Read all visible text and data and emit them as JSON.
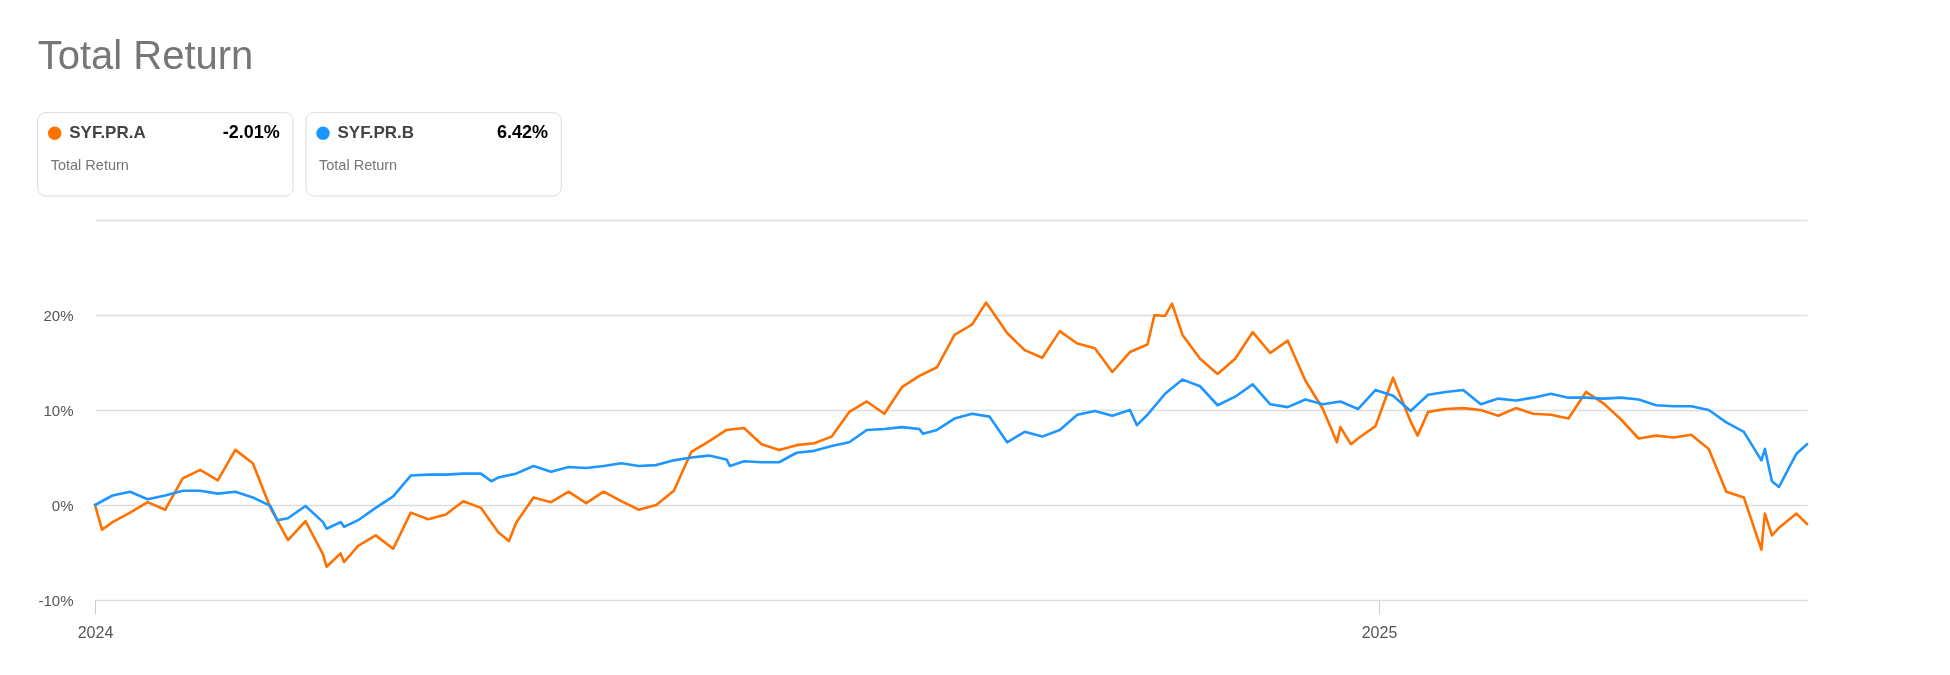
{
  "chart_data": {
    "type": "line",
    "title": "Total Return",
    "xlim": [
      "2024-01-01",
      "2025-05-03"
    ],
    "xticks": [
      {
        "value": "2024-01-01",
        "label": "2024"
      },
      {
        "value": "2025-01-01",
        "label": "2025"
      }
    ],
    "ylim": [
      -10,
      30
    ],
    "yticks": [
      {
        "value": -10,
        "label": "-10%"
      },
      {
        "value": 0,
        "label": "0%"
      },
      {
        "value": 10,
        "label": "10%"
      },
      {
        "value": 20,
        "label": "20%"
      },
      {
        "value": 30,
        "label": null
      }
    ],
    "grid": "y",
    "legend": "top left",
    "annotations": [
      "-2.01%",
      "Total Return",
      "6.42%",
      "Total Return"
    ],
    "series": [
      {
        "name": "SYF.PR.A",
        "color": "#ff7100",
        "x": [
          "2024-01-01",
          "2024-01-03",
          "2024-01-06",
          "2024-01-11",
          "2024-01-16",
          "2024-01-21",
          "2024-01-26",
          "2024-01-31",
          "2024-02-05",
          "2024-02-10",
          "2024-02-15",
          "2024-02-20",
          "2024-02-25",
          "2024-03-01",
          "2024-03-06",
          "2024-03-07",
          "2024-03-11",
          "2024-03-12",
          "2024-03-16",
          "2024-03-21",
          "2024-03-26",
          "2024-03-31",
          "2024-04-05",
          "2024-04-10",
          "2024-04-15",
          "2024-04-20",
          "2024-04-25",
          "2024-04-28",
          "2024-04-30",
          "2024-05-05",
          "2024-05-10",
          "2024-05-15",
          "2024-05-20",
          "2024-05-25",
          "2024-05-30",
          "2024-06-04",
          "2024-06-09",
          "2024-06-14",
          "2024-06-19",
          "2024-06-24",
          "2024-06-29",
          "2024-07-04",
          "2024-07-09",
          "2024-07-14",
          "2024-07-19",
          "2024-07-24",
          "2024-07-29",
          "2024-08-03",
          "2024-08-08",
          "2024-08-13",
          "2024-08-18",
          "2024-08-23",
          "2024-08-28",
          "2024-09-02",
          "2024-09-07",
          "2024-09-11",
          "2024-09-12",
          "2024-09-17",
          "2024-09-22",
          "2024-09-27",
          "2024-10-02",
          "2024-10-07",
          "2024-10-12",
          "2024-10-17",
          "2024-10-22",
          "2024-10-27",
          "2024-10-29",
          "2024-11-01",
          "2024-11-03",
          "2024-11-06",
          "2024-11-11",
          "2024-11-16",
          "2024-11-21",
          "2024-11-26",
          "2024-12-01",
          "2024-12-06",
          "2024-12-11",
          "2024-12-16",
          "2024-12-20",
          "2024-12-21",
          "2024-12-24",
          "2024-12-26",
          "2024-12-31",
          "2025-01-05",
          "2025-01-10",
          "2025-01-12",
          "2025-01-15",
          "2025-01-20",
          "2025-01-25",
          "2025-01-30",
          "2025-02-04",
          "2025-02-09",
          "2025-02-14",
          "2025-02-19",
          "2025-02-24",
          "2025-03-01",
          "2025-03-06",
          "2025-03-11",
          "2025-03-16",
          "2025-03-21",
          "2025-03-26",
          "2025-03-31",
          "2025-04-05",
          "2025-04-10",
          "2025-04-15",
          "2025-04-20",
          "2025-04-21",
          "2025-04-23",
          "2025-04-25",
          "2025-04-30",
          "2025-05-03"
        ],
        "values": [
          0.0,
          -2.6,
          -1.8,
          -0.8,
          0.3,
          -0.5,
          2.8,
          3.7,
          2.6,
          5.8,
          4.4,
          -0.3,
          -3.7,
          -1.7,
          -5.2,
          -6.5,
          -5.1,
          -6.0,
          -4.3,
          -3.2,
          -4.6,
          -0.8,
          -1.5,
          -1.0,
          0.4,
          -0.3,
          -2.9,
          -3.8,
          -1.9,
          0.8,
          0.3,
          1.4,
          0.2,
          1.4,
          0.4,
          -0.5,
          0.0,
          1.5,
          5.6,
          6.7,
          7.9,
          8.1,
          6.4,
          5.8,
          6.3,
          6.5,
          7.2,
          9.8,
          10.9,
          9.6,
          12.4,
          13.6,
          14.5,
          17.9,
          19.0,
          21.3,
          20.8,
          18.1,
          16.3,
          15.5,
          18.3,
          17.0,
          16.5,
          14.0,
          16.1,
          16.9,
          20.0,
          19.9,
          21.2,
          17.9,
          15.4,
          13.8,
          15.4,
          18.2,
          16.0,
          17.3,
          13.1,
          10.1,
          6.6,
          8.2,
          6.4,
          7.0,
          8.3,
          13.4,
          8.8,
          7.3,
          9.8,
          10.1,
          10.2,
          10.0,
          9.4,
          10.2,
          9.6,
          9.5,
          9.1,
          11.9,
          10.7,
          9.0,
          7.0,
          7.3,
          7.1,
          7.4,
          5.9,
          1.4,
          0.8,
          -4.7,
          -0.9,
          -3.2,
          -2.4,
          -0.9,
          -2.0
        ]
      },
      {
        "name": "SYF.PR.B",
        "color": "#1e96ff",
        "x": [
          "2024-01-01",
          "2024-01-06",
          "2024-01-11",
          "2024-01-16",
          "2024-01-21",
          "2024-01-26",
          "2024-01-31",
          "2024-02-05",
          "2024-02-10",
          "2024-02-15",
          "2024-02-20",
          "2024-02-22",
          "2024-02-25",
          "2024-03-01",
          "2024-03-06",
          "2024-03-07",
          "2024-03-11",
          "2024-03-12",
          "2024-03-16",
          "2024-03-21",
          "2024-03-26",
          "2024-03-31",
          "2024-04-05",
          "2024-04-10",
          "2024-04-15",
          "2024-04-20",
          "2024-04-23",
          "2024-04-25",
          "2024-04-30",
          "2024-05-05",
          "2024-05-10",
          "2024-05-15",
          "2024-05-20",
          "2024-05-25",
          "2024-05-30",
          "2024-06-04",
          "2024-06-09",
          "2024-06-14",
          "2024-06-19",
          "2024-06-24",
          "2024-06-29",
          "2024-06-30",
          "2024-07-04",
          "2024-07-09",
          "2024-07-14",
          "2024-07-19",
          "2024-07-24",
          "2024-07-29",
          "2024-08-03",
          "2024-08-08",
          "2024-08-13",
          "2024-08-18",
          "2024-08-23",
          "2024-08-24",
          "2024-08-28",
          "2024-09-02",
          "2024-09-07",
          "2024-09-12",
          "2024-09-17",
          "2024-09-22",
          "2024-09-27",
          "2024-10-02",
          "2024-10-07",
          "2024-10-12",
          "2024-10-17",
          "2024-10-22",
          "2024-10-24",
          "2024-10-27",
          "2024-11-01",
          "2024-11-06",
          "2024-11-11",
          "2024-11-16",
          "2024-11-21",
          "2024-11-26",
          "2024-12-01",
          "2024-12-06",
          "2024-12-11",
          "2024-12-16",
          "2024-12-21",
          "2024-12-26",
          "2024-12-31",
          "2025-01-05",
          "2025-01-10",
          "2025-01-15",
          "2025-01-20",
          "2025-01-25",
          "2025-01-30",
          "2025-02-04",
          "2025-02-09",
          "2025-02-14",
          "2025-02-19",
          "2025-02-24",
          "2025-03-01",
          "2025-03-06",
          "2025-03-11",
          "2025-03-16",
          "2025-03-21",
          "2025-03-26",
          "2025-03-31",
          "2025-04-05",
          "2025-04-10",
          "2025-04-15",
          "2025-04-20",
          "2025-04-21",
          "2025-04-23",
          "2025-04-25",
          "2025-04-30",
          "2025-05-03"
        ],
        "values": [
          0.0,
          1.0,
          1.4,
          0.6,
          1.0,
          1.5,
          1.5,
          1.2,
          1.4,
          0.8,
          -0.1,
          -1.6,
          -1.4,
          -0.1,
          -1.8,
          -2.5,
          -1.8,
          -2.3,
          -1.6,
          -0.3,
          0.9,
          3.1,
          3.2,
          3.2,
          3.3,
          3.3,
          2.5,
          2.9,
          3.3,
          4.1,
          3.5,
          4.0,
          3.9,
          4.1,
          4.4,
          4.1,
          4.2,
          4.7,
          5.0,
          5.2,
          4.8,
          4.1,
          4.6,
          4.5,
          4.5,
          5.5,
          5.7,
          6.2,
          6.6,
          7.9,
          8.0,
          8.2,
          8.0,
          7.5,
          7.9,
          9.1,
          9.6,
          9.3,
          6.6,
          7.7,
          7.2,
          7.9,
          9.5,
          9.9,
          9.4,
          10.0,
          8.4,
          9.5,
          11.7,
          13.2,
          12.5,
          10.5,
          11.4,
          12.7,
          10.6,
          10.3,
          11.1,
          10.6,
          10.9,
          10.1,
          12.1,
          11.5,
          9.9,
          11.6,
          11.9,
          12.1,
          10.6,
          11.2,
          11.0,
          11.3,
          11.7,
          11.3,
          11.3,
          11.2,
          11.3,
          11.1,
          10.5,
          10.4,
          10.4,
          10.0,
          8.7,
          7.7,
          4.7,
          5.9,
          2.5,
          1.9,
          5.4,
          6.4
        ]
      }
    ]
  }
}
